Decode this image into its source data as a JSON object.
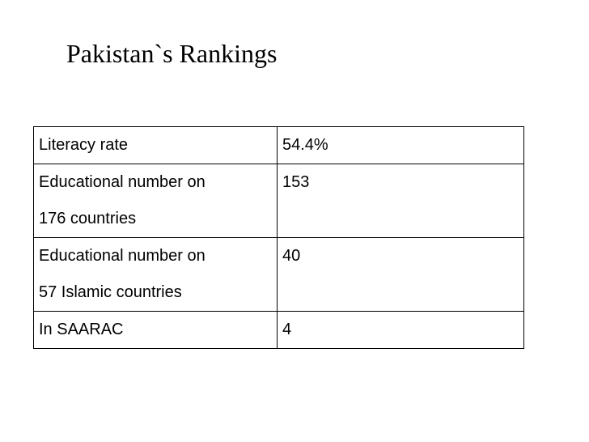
{
  "slide": {
    "title": "Pakistan`s Rankings"
  },
  "table": {
    "rows": [
      {
        "label_lines": [
          "Literacy rate"
        ],
        "value": "54.4%"
      },
      {
        "label_lines": [
          "Educational number on",
          "176 countries"
        ],
        "value": "153"
      },
      {
        "label_lines": [
          "Educational number on",
          "57 Islamic countries"
        ],
        "value": "40"
      },
      {
        "label_lines": [
          "In SAARAC"
        ],
        "value": "4"
      }
    ]
  }
}
